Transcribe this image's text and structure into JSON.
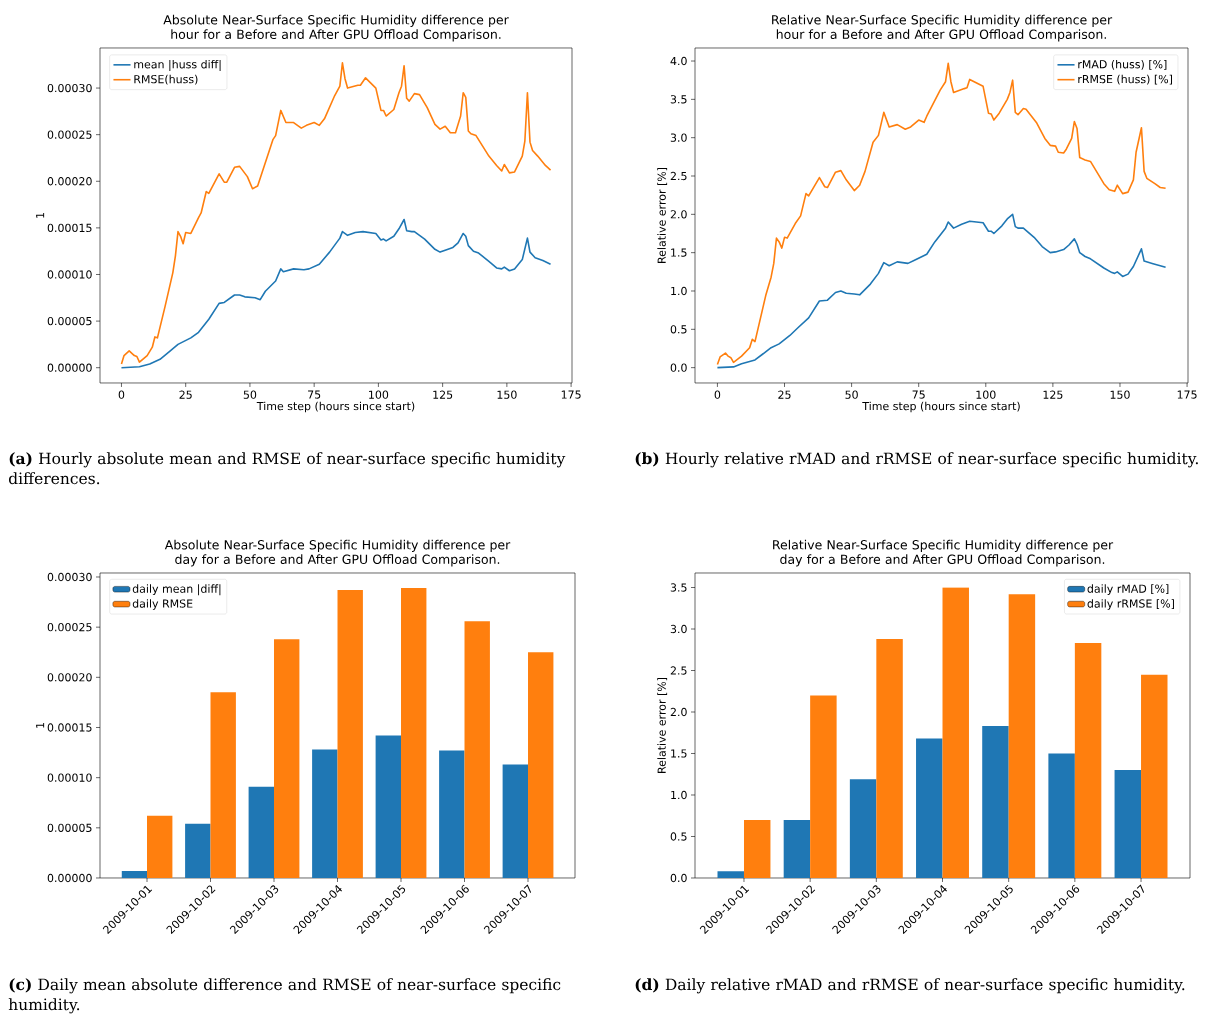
{
  "chart_data": [
    {
      "type": "line",
      "title": "Absolute Near-Surface Specific Humidity difference per hour for a Before and After GPU Offload Comparison.",
      "xlabel": "Time step (hours since start)",
      "ylabel": "1",
      "xlim": [
        -8.35,
        175.35
      ],
      "ylim": [
        -1.64e-05,
        0.000343
      ],
      "xticks": [
        0,
        25,
        50,
        75,
        100,
        125,
        150,
        175
      ],
      "yticks": [
        {
          "value": 0,
          "label": "0.00000"
        },
        {
          "value": 5e-05,
          "label": "0.00005"
        },
        {
          "value": 0.0001,
          "label": "0.00010"
        },
        {
          "value": 0.00015,
          "label": "0.00015"
        },
        {
          "value": 0.0002,
          "label": "0.00020"
        },
        {
          "value": 0.00025,
          "label": "0.00025"
        },
        {
          "value": 0.0003,
          "label": "0.00030"
        }
      ],
      "legend": "top left",
      "grid": false,
      "series": [
        {
          "name": "mean |huss diff|",
          "color": "#1f77b4",
          "x": [
            0,
            7,
            11,
            15,
            19,
            22,
            27,
            30,
            34,
            38,
            40,
            44,
            46,
            48,
            52,
            54,
            56,
            60,
            62,
            63,
            67,
            71,
            73,
            77,
            81,
            85,
            86,
            88,
            91,
            94,
            99,
            101,
            102,
            103,
            106,
            108,
            110,
            111,
            113,
            114,
            118,
            122,
            124,
            126,
            129,
            131,
            133,
            134,
            135,
            137,
            139,
            143,
            146,
            148,
            149,
            151,
            153,
            156,
            158,
            159,
            161,
            164,
            167
          ],
          "values": [
            0,
            1e-06,
            4e-06,
            9e-06,
            1.8e-05,
            2.5e-05,
            3.2e-05,
            3.8e-05,
            5.2e-05,
            6.9e-05,
            7e-05,
            7.8e-05,
            7.8e-05,
            7.6e-05,
            7.5e-05,
            7.3e-05,
            8.2e-05,
            9.3e-05,
            0.000106,
            0.000103,
            0.000106,
            0.000105,
            0.000106,
            0.000111,
            0.000124,
            0.000139,
            0.000146,
            0.000142,
            0.000145,
            0.000146,
            0.000144,
            0.000137,
            0.000138,
            0.000136,
            0.000141,
            0.000149,
            0.000159,
            0.000147,
            0.000146,
            0.000146,
            0.000138,
            0.000127,
            0.000124,
            0.000126,
            0.000129,
            0.000134,
            0.000144,
            0.000141,
            0.000131,
            0.000125,
            0.000123,
            0.000114,
            0.000107,
            0.000106,
            0.000108,
            0.000104,
            0.000106,
            0.000116,
            0.000139,
            0.000124,
            0.000118,
            0.000115,
            0.000111
          ]
        },
        {
          "name": "RMSE(huss)",
          "color": "#ff7f0e",
          "x": [
            0,
            1,
            3,
            5,
            6,
            7,
            10,
            12,
            13,
            14,
            17,
            20,
            21,
            22,
            23,
            24,
            25,
            27,
            30,
            31,
            33,
            34,
            38,
            40,
            41,
            44,
            46,
            49,
            51,
            53,
            56,
            59,
            60,
            62,
            64,
            67,
            70,
            72,
            75,
            77,
            79,
            83,
            85,
            86,
            87,
            88,
            92,
            93,
            95,
            99,
            101,
            102,
            103,
            106,
            108,
            109,
            110,
            111,
            112,
            114,
            116,
            119,
            122,
            124,
            126,
            128,
            130,
            132,
            133,
            134,
            135,
            136,
            138,
            143,
            146,
            148,
            149,
            151,
            153,
            156,
            157,
            158,
            159,
            160,
            162,
            165,
            167
          ],
          "values": [
            4e-06,
            1.3e-05,
            1.8e-05,
            1.3e-05,
            1.2e-05,
            6e-06,
            1.3e-05,
            2.2e-05,
            3.3e-05,
            3.2e-05,
            6.6e-05,
            0.000102,
            0.00012,
            0.000146,
            0.000141,
            0.000133,
            0.000145,
            0.000144,
            0.000161,
            0.000166,
            0.000189,
            0.000187,
            0.000208,
            0.000199,
            0.000199,
            0.000215,
            0.000216,
            0.000205,
            0.000192,
            0.000195,
            0.00022,
            0.000245,
            0.000249,
            0.000276,
            0.000263,
            0.000263,
            0.000257,
            0.00026,
            0.000263,
            0.00026,
            0.000267,
            0.000292,
            0.000302,
            0.000327,
            0.00031,
            0.0003,
            0.000303,
            0.000303,
            0.000311,
            0.0003,
            0.000276,
            0.000276,
            0.00027,
            0.000277,
            0.000295,
            0.000302,
            0.000324,
            0.000289,
            0.000286,
            0.000294,
            0.000293,
            0.000279,
            0.000261,
            0.000256,
            0.000259,
            0.000252,
            0.000252,
            0.00027,
            0.000295,
            0.00029,
            0.000254,
            0.000251,
            0.000249,
            0.000227,
            0.000217,
            0.000211,
            0.000218,
            0.000209,
            0.00021,
            0.000227,
            0.000243,
            0.000295,
            0.000242,
            0.000233,
            0.000227,
            0.000217,
            0.000212
          ]
        }
      ],
      "annotations": [
        "**(a)** Hourly absolute mean and RMSE of near-surface specific humidity differences."
      ]
    },
    {
      "type": "line",
      "title": "Relative Near-Surface Specific Humidity difference per hour for a Before and After GPU Offload Comparison.",
      "xlabel": "Time step (hours since start)",
      "ylabel": "Relative error [%]",
      "xlim": [
        -8.35,
        175.35
      ],
      "ylim": [
        -0.2,
        4.17
      ],
      "xticks": [
        0,
        25,
        50,
        75,
        100,
        125,
        150,
        175
      ],
      "yticks": [
        {
          "value": 0,
          "label": "0.0"
        },
        {
          "value": 0.5,
          "label": "0.5"
        },
        {
          "value": 1,
          "label": "1.0"
        },
        {
          "value": 1.5,
          "label": "1.5"
        },
        {
          "value": 2,
          "label": "2.0"
        },
        {
          "value": 2.5,
          "label": "2.5"
        },
        {
          "value": 3,
          "label": "3.0"
        },
        {
          "value": 3.5,
          "label": "3.5"
        },
        {
          "value": 4,
          "label": "4.0"
        }
      ],
      "legend": "top right",
      "grid": false,
      "series": [
        {
          "name": "rMAD (huss) [%]",
          "color": "#1f77b4",
          "x": [
            0,
            6,
            9,
            14,
            20,
            23,
            27,
            30,
            34,
            38,
            41,
            44,
            46,
            48,
            51,
            53,
            57,
            60,
            62,
            64,
            67,
            71,
            74,
            78,
            81,
            85,
            86,
            88,
            91,
            94,
            99,
            101,
            102,
            103,
            106,
            108,
            110,
            111,
            112,
            114,
            118,
            121,
            124,
            126,
            129,
            131,
            133,
            134,
            135,
            137,
            139,
            144,
            147,
            148,
            149,
            151,
            153,
            155,
            158,
            159,
            162,
            165,
            167
          ],
          "values": [
            0,
            0.01,
            0.05,
            0.1,
            0.26,
            0.31,
            0.42,
            0.52,
            0.65,
            0.87,
            0.88,
            0.98,
            1.0,
            0.97,
            0.96,
            0.95,
            1.09,
            1.23,
            1.37,
            1.33,
            1.38,
            1.36,
            1.41,
            1.48,
            1.64,
            1.82,
            1.9,
            1.82,
            1.87,
            1.91,
            1.89,
            1.78,
            1.78,
            1.75,
            1.85,
            1.94,
            2.0,
            1.84,
            1.82,
            1.82,
            1.7,
            1.58,
            1.5,
            1.51,
            1.54,
            1.6,
            1.68,
            1.61,
            1.5,
            1.45,
            1.42,
            1.3,
            1.24,
            1.23,
            1.25,
            1.19,
            1.22,
            1.32,
            1.55,
            1.39,
            1.36,
            1.33,
            1.31
          ]
        },
        {
          "name": "rRMSE (huss) [%]",
          "color": "#ff7f0e",
          "x": [
            0,
            1,
            3,
            4,
            5,
            6,
            9,
            12,
            13,
            14,
            18,
            20,
            21,
            22,
            23,
            24,
            25,
            26,
            29,
            31,
            33,
            34,
            38,
            40,
            41,
            44,
            46,
            48,
            51,
            53,
            55,
            58,
            60,
            62,
            64,
            67,
            70,
            72,
            75,
            77,
            78,
            83,
            85,
            86,
            87,
            88,
            92,
            93,
            94,
            99,
            101,
            102,
            103,
            105,
            108,
            109,
            110,
            111,
            112,
            114,
            115,
            119,
            122,
            124,
            126,
            127,
            129,
            130,
            132,
            133,
            134,
            135,
            137,
            139,
            144,
            146,
            148,
            149,
            151,
            153,
            155,
            156,
            158,
            159,
            160,
            163,
            165,
            167
          ],
          "values": [
            0.04,
            0.14,
            0.19,
            0.15,
            0.13,
            0.07,
            0.15,
            0.26,
            0.37,
            0.34,
            0.94,
            1.18,
            1.36,
            1.69,
            1.64,
            1.56,
            1.7,
            1.69,
            1.88,
            1.98,
            2.27,
            2.24,
            2.48,
            2.36,
            2.35,
            2.55,
            2.57,
            2.45,
            2.31,
            2.38,
            2.56,
            2.94,
            3.03,
            3.33,
            3.14,
            3.17,
            3.11,
            3.14,
            3.23,
            3.2,
            3.28,
            3.62,
            3.73,
            3.97,
            3.73,
            3.59,
            3.64,
            3.65,
            3.76,
            3.67,
            3.32,
            3.31,
            3.23,
            3.32,
            3.5,
            3.59,
            3.75,
            3.33,
            3.3,
            3.38,
            3.37,
            3.19,
            2.99,
            2.9,
            2.89,
            2.81,
            2.8,
            2.85,
            2.99,
            3.21,
            3.12,
            2.74,
            2.71,
            2.69,
            2.4,
            2.32,
            2.3,
            2.38,
            2.27,
            2.29,
            2.45,
            2.81,
            3.13,
            2.56,
            2.47,
            2.4,
            2.35,
            2.34
          ]
        }
      ],
      "annotations": [
        "**(b)** Hourly relative rMAD and rRMSE of near-surface specific humidity."
      ]
    },
    {
      "type": "bar",
      "title": "Absolute Near-Surface Specific Humidity difference per day for a Before and After GPU Offload Comparison.",
      "ylabel": "1",
      "categories": [
        "2009-10-01",
        "2009-10-02",
        "2009-10-03",
        "2009-10-04",
        "2009-10-05",
        "2009-10-06",
        "2009-10-07"
      ],
      "ylim": [
        0,
        0.000304
      ],
      "yticks": [
        {
          "value": 0,
          "label": "0.00000"
        },
        {
          "value": 5e-05,
          "label": "0.00005"
        },
        {
          "value": 0.0001,
          "label": "0.00010"
        },
        {
          "value": 0.00015,
          "label": "0.00015"
        },
        {
          "value": 0.0002,
          "label": "0.00020"
        },
        {
          "value": 0.00025,
          "label": "0.00025"
        },
        {
          "value": 0.0003,
          "label": "0.00030"
        }
      ],
      "legend": "top left",
      "grid": false,
      "series": [
        {
          "name": "daily mean |diff|",
          "color": "#1f77b4",
          "values": [
            7e-06,
            5.4e-05,
            9.1e-05,
            0.000128,
            0.000142,
            0.000127,
            0.000113
          ]
        },
        {
          "name": "daily RMSE",
          "color": "#ff7f0e",
          "values": [
            6.2e-05,
            0.000185,
            0.000238,
            0.000287,
            0.000289,
            0.000256,
            0.000225
          ]
        }
      ],
      "annotations": [
        "**(c)** Daily mean absolute difference and RMSE of near-surface specific humidity."
      ]
    },
    {
      "type": "bar",
      "title": "Relative Near-Surface Specific Humidity difference per day for a Before and After GPU Offload Comparison.",
      "ylabel": "Relative error [%]",
      "categories": [
        "2009-10-01",
        "2009-10-02",
        "2009-10-03",
        "2009-10-04",
        "2009-10-05",
        "2009-10-06",
        "2009-10-07"
      ],
      "ylim": [
        0,
        3.675
      ],
      "yticks": [
        {
          "value": 0,
          "label": "0.0"
        },
        {
          "value": 0.5,
          "label": "0.5"
        },
        {
          "value": 1,
          "label": "1.0"
        },
        {
          "value": 1.5,
          "label": "1.5"
        },
        {
          "value": 2,
          "label": "2.0"
        },
        {
          "value": 2.5,
          "label": "2.5"
        },
        {
          "value": 3,
          "label": "3.0"
        },
        {
          "value": 3.5,
          "label": "3.5"
        }
      ],
      "legend": "top right",
      "grid": false,
      "series": [
        {
          "name": "daily rMAD [%]",
          "color": "#1f77b4",
          "values": [
            0.08,
            0.7,
            1.19,
            1.68,
            1.83,
            1.5,
            1.3
          ]
        },
        {
          "name": "daily rRMSE [%]",
          "color": "#ff7f0e",
          "values": [
            0.7,
            2.2,
            2.88,
            3.5,
            3.42,
            2.83,
            2.45
          ]
        }
      ],
      "annotations": [
        "**(d)** Daily relative rMAD and rRMSE of near-surface specific humidity."
      ]
    }
  ]
}
